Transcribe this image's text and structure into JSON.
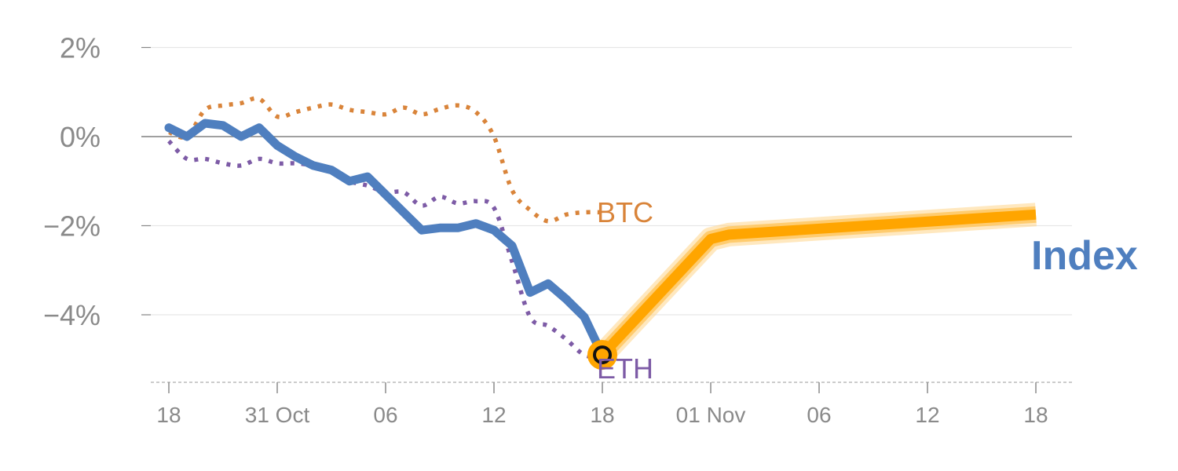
{
  "chart_data": {
    "type": "line",
    "title": "",
    "xlabel": "",
    "ylabel": "",
    "ylim": [
      -5.5,
      2.2
    ],
    "y_ticks": [
      {
        "value": 2,
        "label": "2%"
      },
      {
        "value": 0,
        "label": "0%"
      },
      {
        "value": -2,
        "label": "−2%"
      },
      {
        "value": -4,
        "label": "−4%"
      }
    ],
    "x_ticks": [
      {
        "value": 0,
        "label": "18"
      },
      {
        "value": 6,
        "label": "31 Oct"
      },
      {
        "value": 12,
        "label": "06"
      },
      {
        "value": 18,
        "label": "12"
      },
      {
        "value": 24,
        "label": "18"
      },
      {
        "value": 30,
        "label": "01 Nov"
      },
      {
        "value": 36,
        "label": "06"
      },
      {
        "value": 42,
        "label": "12"
      },
      {
        "value": 48,
        "label": "18"
      }
    ],
    "xlim": [
      -1,
      49
    ],
    "grid": true,
    "series": [
      {
        "name": "BTC",
        "style": "dotted",
        "color": "#d9843a",
        "x": [
          0,
          1,
          2,
          3,
          4,
          5,
          6,
          7,
          8,
          9,
          10,
          11,
          12,
          13,
          14,
          15,
          16,
          17,
          18,
          19,
          20,
          21,
          22,
          23,
          24
        ],
        "y": [
          0.1,
          0.0,
          0.6,
          0.7,
          0.75,
          0.85,
          0.45,
          0.55,
          0.65,
          0.72,
          0.6,
          0.55,
          0.5,
          0.65,
          0.5,
          0.62,
          0.7,
          0.55,
          0.0,
          -1.2,
          -1.65,
          -1.9,
          -1.75,
          -1.7,
          -1.7
        ]
      },
      {
        "name": "ETH",
        "style": "dotted",
        "color": "#7d5ba6",
        "x": [
          0,
          1,
          2,
          3,
          4,
          5,
          6,
          7,
          8,
          9,
          10,
          11,
          12,
          13,
          14,
          15,
          16,
          17,
          18,
          19,
          20,
          21,
          22,
          23,
          24
        ],
        "y": [
          -0.1,
          -0.5,
          -0.5,
          -0.6,
          -0.65,
          -0.5,
          -0.6,
          -0.6,
          -0.65,
          -0.75,
          -1.0,
          -1.1,
          -1.25,
          -1.25,
          -1.55,
          -1.35,
          -1.5,
          -1.45,
          -1.6,
          -2.8,
          -4.05,
          -4.25,
          -4.55,
          -4.9,
          -4.95
        ]
      },
      {
        "name": "Index",
        "style": "solid",
        "color": "#4f7fbf",
        "x": [
          0,
          1,
          2,
          3,
          4,
          5,
          6,
          7,
          8,
          9,
          10,
          11,
          12,
          13,
          14,
          15,
          16,
          17,
          18,
          19,
          20,
          21,
          22,
          23,
          24
        ],
        "y": [
          0.2,
          0.0,
          0.3,
          0.25,
          0.0,
          0.2,
          -0.2,
          -0.45,
          -0.65,
          -0.75,
          -1.0,
          -0.9,
          -1.3,
          -1.7,
          -2.1,
          -2.05,
          -2.05,
          -1.95,
          -2.1,
          -2.45,
          -3.5,
          -3.3,
          -3.65,
          -4.05,
          -4.9
        ]
      },
      {
        "name": "",
        "role": "forecast",
        "style": "thick",
        "color": "#ffa500",
        "x": [
          24,
          30,
          31,
          48
        ],
        "y": [
          -4.9,
          -2.3,
          -2.2,
          -1.75
        ]
      }
    ],
    "marker": {
      "x": 24,
      "y": -4.9,
      "color": "#ffa500"
    }
  },
  "colors": {
    "axis": "#8a8a8a",
    "grid": "#e6e6e6",
    "zero_line": "#808080",
    "index_label": "#4f7fbf"
  }
}
